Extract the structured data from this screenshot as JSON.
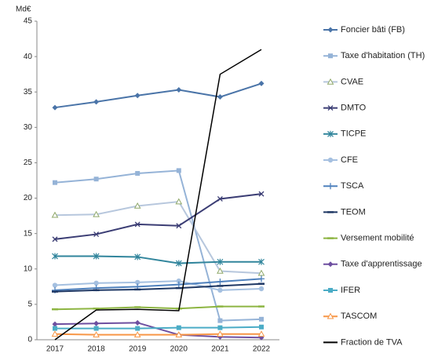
{
  "chart_data": {
    "type": "line",
    "y_label": "Md€",
    "categories": [
      "2017",
      "2018",
      "2019",
      "2020",
      "2021",
      "2022"
    ],
    "ylim": [
      0,
      45
    ],
    "yticks": [
      0,
      5,
      10,
      15,
      20,
      25,
      30,
      35,
      40,
      45
    ],
    "legend": "right",
    "series": [
      {
        "name": "Foncier bâti (FB)",
        "color": "#4a74a8",
        "marker": "diamond",
        "values": [
          32.8,
          33.6,
          34.5,
          35.3,
          34.3,
          36.2
        ]
      },
      {
        "name": "Taxe d'habitation (TH)",
        "color": "#95b3d7",
        "marker": "square",
        "values": [
          22.2,
          22.7,
          23.5,
          23.9,
          2.7,
          2.9
        ]
      },
      {
        "name": "CVAE",
        "color": "#b7c7dd",
        "marker": "triangle",
        "values": [
          17.6,
          17.7,
          18.9,
          19.5,
          9.7,
          9.4
        ]
      },
      {
        "name": "DMTO",
        "color": "#3b3d74",
        "marker": "x",
        "values": [
          14.2,
          14.9,
          16.3,
          16.1,
          19.9,
          20.6
        ]
      },
      {
        "name": "TICPE",
        "color": "#31859c",
        "marker": "star",
        "values": [
          11.8,
          11.8,
          11.7,
          10.8,
          11.0,
          11.0
        ]
      },
      {
        "name": "CFE",
        "color": "#a5c0e0",
        "marker": "circle",
        "values": [
          7.7,
          8.0,
          8.1,
          8.3,
          7.0,
          7.2
        ]
      },
      {
        "name": "TSCA",
        "color": "#4f81bd",
        "marker": "plus",
        "values": [
          7.0,
          7.3,
          7.5,
          7.8,
          8.2,
          8.6
        ]
      },
      {
        "name": "TEOM",
        "color": "#1f3864",
        "marker": "dash",
        "values": [
          6.8,
          7.0,
          7.1,
          7.3,
          7.6,
          7.9
        ]
      },
      {
        "name": "Versement mobilité",
        "color": "#8db542",
        "marker": "dash",
        "values": [
          4.3,
          4.4,
          4.6,
          4.4,
          4.7,
          4.7
        ]
      },
      {
        "name": "Taxe d'apprentissage",
        "color": "#6e4fa0",
        "marker": "diamond",
        "values": [
          2.2,
          2.3,
          2.4,
          0.7,
          0.4,
          0.3
        ]
      },
      {
        "name": "IFER",
        "color": "#4bacc6",
        "marker": "square",
        "values": [
          1.6,
          1.6,
          1.6,
          1.7,
          1.7,
          1.8
        ]
      },
      {
        "name": "TASCOM",
        "color": "#f79646",
        "marker": "triangle",
        "values": [
          0.8,
          0.7,
          0.7,
          0.7,
          0.8,
          0.8
        ]
      },
      {
        "name": "Fraction de TVA",
        "color": "#000000",
        "marker": "none",
        "values": [
          0,
          4.2,
          4.3,
          4.1,
          37.5,
          41.0
        ]
      }
    ]
  }
}
